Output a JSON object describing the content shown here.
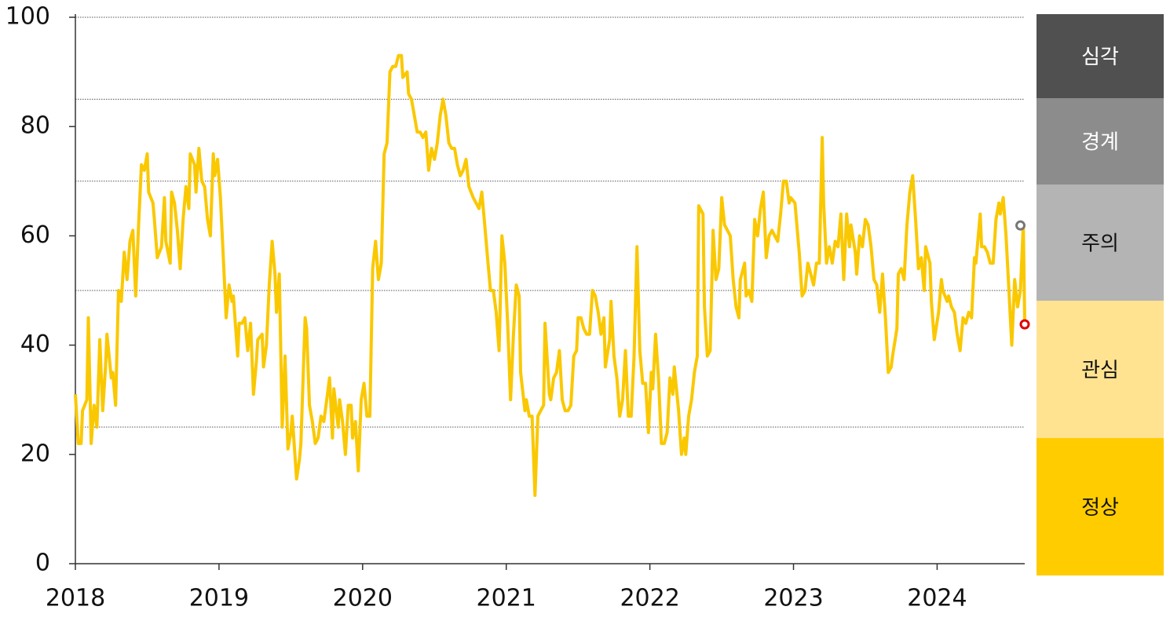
{
  "chart_data": {
    "type": "line",
    "xlim": [
      2018,
      2024.61
    ],
    "xticks": [
      2018,
      2019,
      2020,
      2021,
      2022,
      2023,
      2024
    ],
    "ylim": [
      0,
      100
    ],
    "yticks": [
      0,
      20,
      40,
      60,
      80,
      100
    ],
    "grid_lines": [
      25,
      50,
      70,
      85,
      100
    ],
    "color": "#fac800",
    "x": [
      2018,
      2018.02,
      2018.04,
      2018.05,
      2018.08,
      2018.09,
      2018.11,
      2018.13,
      2018.15,
      2018.17,
      2018.19,
      2018.21,
      2018.22,
      2018.25,
      2018.26,
      2018.28,
      2018.3,
      2018.32,
      2018.34,
      2018.36,
      2018.38,
      2018.4,
      2018.42,
      2018.44,
      2018.46,
      2018.48,
      2018.5,
      2018.51,
      2018.54,
      2018.55,
      2018.57,
      2018.6,
      2018.62,
      2018.63,
      2018.66,
      2018.67,
      2018.69,
      2018.71,
      2018.73,
      2018.75,
      2018.77,
      2018.79,
      2018.8,
      2018.83,
      2018.84,
      2018.86,
      2018.88,
      2018.9,
      2018.92,
      2018.94,
      2018.96,
      2018.97,
      2018.99,
      2019.01,
      2019.03,
      2019.05,
      2019.07,
      2019.09,
      2019.1,
      2019.13,
      2019.14,
      2019.16,
      2019.18,
      2019.2,
      2019.22,
      2019.24,
      2019.26,
      2019.27,
      2019.3,
      2019.31,
      2019.33,
      2019.35,
      2019.37,
      2019.39,
      2019.4,
      2019.42,
      2019.44,
      2019.46,
      2019.48,
      2019.5,
      2019.51,
      2019.54,
      2019.56,
      2019.57,
      2019.6,
      2019.61,
      2019.63,
      2019.65,
      2019.67,
      2019.69,
      2019.71,
      2019.73,
      2019.75,
      2019.77,
      2019.79,
      2019.8,
      2019.83,
      2019.84,
      2019.86,
      2019.88,
      2019.9,
      2019.92,
      2019.93,
      2019.95,
      2019.97,
      2019.99,
      2020.01,
      2020.03,
      2020.05,
      2020.07,
      2020.09,
      2020.11,
      2020.13,
      2020.15,
      2020.17,
      2020.19,
      2020.21,
      2020.23,
      2020.25,
      2020.27,
      2020.28,
      2020.31,
      2020.32,
      2020.34,
      2020.36,
      2020.38,
      2020.4,
      2020.42,
      2020.44,
      2020.46,
      2020.48,
      2020.5,
      2020.52,
      2020.54,
      2020.56,
      2020.58,
      2020.6,
      2020.62,
      2020.64,
      2020.66,
      2020.68,
      2020.7,
      2020.72,
      2020.74,
      2020.77,
      2020.79,
      2020.81,
      2020.83,
      2020.85,
      2020.87,
      2020.89,
      2020.91,
      2020.93,
      2020.95,
      2020.97,
      2020.99,
      2021.01,
      2021.03,
      2021.05,
      2021.07,
      2021.09,
      2021.1,
      2021.13,
      2021.14,
      2021.16,
      2021.18,
      2021.2,
      2021.22,
      2021.24,
      2021.26,
      2021.27,
      2021.3,
      2021.31,
      2021.33,
      2021.35,
      2021.37,
      2021.39,
      2021.41,
      2021.43,
      2021.45,
      2021.47,
      2021.49,
      2021.5,
      2021.52,
      2021.54,
      2021.56,
      2021.58,
      2021.6,
      2021.62,
      2021.64,
      2021.66,
      2021.68,
      2021.69,
      2021.72,
      2021.73,
      2021.75,
      2021.77,
      2021.79,
      2021.81,
      2021.83,
      2021.85,
      2021.87,
      2021.89,
      2021.91,
      2021.93,
      2021.95,
      2021.97,
      2021.99,
      2022.01,
      2022.02,
      2022.04,
      2022.06,
      2022.08,
      2022.1,
      2022.12,
      2022.14,
      2022.16,
      2022.17,
      2022.2,
      2022.22,
      2022.24,
      2022.25,
      2022.27,
      2022.29,
      2022.31,
      2022.33,
      2022.34,
      2022.37,
      2022.38,
      2022.4,
      2022.42,
      2022.44,
      2022.46,
      2022.48,
      2022.5,
      2022.52,
      2022.54,
      2022.56,
      2022.58,
      2022.6,
      2022.62,
      2022.63,
      2022.66,
      2022.67,
      2022.69,
      2022.71,
      2022.73,
      2022.75,
      2022.77,
      2022.79,
      2022.81,
      2022.83,
      2022.85,
      2022.87,
      2022.89,
      2022.91,
      2022.93,
      2022.95,
      2022.97,
      2022.98,
      2023.01,
      2023.02,
      2023.04,
      2023.06,
      2023.08,
      2023.1,
      2023.12,
      2023.14,
      2023.16,
      2023.18,
      2023.2,
      2023.21,
      2023.23,
      2023.25,
      2023.27,
      2023.29,
      2023.31,
      2023.33,
      2023.35,
      2023.37,
      2023.39,
      2023.4,
      2023.43,
      2023.44,
      2023.46,
      2023.48,
      2023.5,
      2023.52,
      2023.54,
      2023.56,
      2023.58,
      2023.6,
      2023.62,
      2023.64,
      2023.66,
      2023.68,
      2023.69,
      2023.72,
      2023.73,
      2023.75,
      2023.77,
      2023.79,
      2023.81,
      2023.83,
      2023.85,
      2023.87,
      2023.89,
      2023.91,
      2023.92,
      2023.95,
      2023.96,
      2023.98,
      2024.01,
      2024.03,
      2024.04,
      2024.07,
      2024.08,
      2024.1,
      2024.12,
      2024.14,
      2024.16,
      2024.18,
      2024.2,
      2024.22,
      2024.24,
      2024.26,
      2024.27,
      2024.3,
      2024.31,
      2024.33,
      2024.35,
      2024.37,
      2024.39,
      2024.41,
      2024.43,
      2024.44,
      2024.46,
      2024.48,
      2024.5,
      2024.52,
      2024.54,
      2024.56,
      2024.58,
      2024.6,
      2024.61
    ],
    "values": [
      31,
      22,
      22,
      28,
      30,
      45,
      22,
      29,
      25,
      41,
      28,
      36,
      42,
      34,
      35,
      29,
      50,
      48,
      57,
      52,
      59,
      61,
      49,
      62,
      73,
      72,
      75,
      68,
      66,
      63,
      56,
      58,
      67,
      59,
      55,
      68,
      66,
      61,
      54,
      63,
      69,
      65,
      75,
      73,
      68,
      76,
      70,
      69,
      63,
      60,
      75,
      71,
      74,
      67,
      56,
      45,
      51,
      48,
      49,
      38,
      44,
      44,
      45,
      39,
      44,
      31,
      37,
      41,
      42,
      36,
      40,
      51,
      59,
      53,
      46,
      53,
      25,
      38,
      21,
      24,
      27,
      15.5,
      19,
      22,
      45,
      43,
      29,
      26,
      22,
      23,
      27,
      26,
      30,
      34,
      23,
      32,
      25,
      30,
      26,
      20,
      29,
      29,
      23,
      26,
      17,
      30,
      33,
      27,
      27,
      54,
      59,
      52,
      55,
      75,
      77,
      90,
      91,
      91,
      93,
      93,
      89,
      90,
      86,
      85,
      82,
      79,
      79,
      78,
      79,
      72,
      76,
      74,
      77,
      82,
      85,
      82,
      77,
      76,
      76,
      73,
      71,
      72,
      74,
      69,
      67,
      66,
      65,
      68,
      62,
      56,
      50,
      50,
      46,
      39,
      60,
      55,
      44,
      30,
      42,
      51,
      49,
      35,
      28,
      30,
      27,
      27,
      12.5,
      27,
      28,
      29,
      44,
      31,
      30,
      34,
      35,
      39,
      30,
      28,
      28,
      29,
      38,
      39,
      45,
      45,
      43,
      42,
      42,
      50,
      49,
      46,
      42,
      45,
      36,
      41,
      48,
      38,
      34,
      27,
      30,
      39,
      27,
      27,
      38,
      58,
      39,
      33,
      33,
      24,
      35,
      32,
      42,
      34,
      22,
      22,
      24,
      34,
      31,
      36,
      28,
      20,
      23,
      20,
      27,
      30,
      35,
      38,
      65.5,
      64,
      47,
      38,
      39,
      61,
      52,
      54,
      67,
      62,
      61,
      60,
      52,
      47,
      45,
      52,
      55,
      49,
      50,
      48,
      63,
      60,
      65,
      68,
      56,
      60,
      61,
      60,
      59,
      64,
      70,
      70,
      66,
      67,
      66,
      63,
      57,
      49,
      50,
      55,
      53,
      51,
      55,
      55,
      78,
      66,
      55,
      58,
      55,
      59,
      58,
      64,
      52,
      64,
      58,
      62,
      57,
      53,
      60,
      58,
      63,
      62,
      58,
      52,
      51,
      46,
      53,
      45,
      35,
      36,
      38,
      43,
      53,
      54,
      52,
      62,
      68,
      71,
      63,
      54,
      56,
      50,
      58,
      55,
      48,
      41,
      46,
      52,
      50,
      48,
      49,
      47,
      46,
      42,
      39,
      45,
      44,
      46,
      45,
      56,
      55,
      64,
      58,
      58,
      57,
      55,
      55,
      63,
      66,
      64,
      67,
      60,
      50,
      40,
      52,
      47,
      50,
      62,
      44
    ],
    "markers": [
      {
        "x": 2024.58,
        "value": 61.9,
        "color": "#777777"
      },
      {
        "x": 2024.61,
        "value": 43.8,
        "color": "#e00000"
      }
    ],
    "zones": [
      {
        "name": "심각",
        "color": "#505050",
        "text_color": "#ffffff"
      },
      {
        "name": "경계",
        "color": "#8c8c8c",
        "text_color": "#ffffff"
      },
      {
        "name": "주의",
        "color": "#b4b4b4",
        "text_color": "#111111"
      },
      {
        "name": "관심",
        "color": "#ffe391",
        "text_color": "#111111"
      },
      {
        "name": "정상",
        "color": "#ffcc00",
        "text_color": "#111111"
      }
    ]
  }
}
